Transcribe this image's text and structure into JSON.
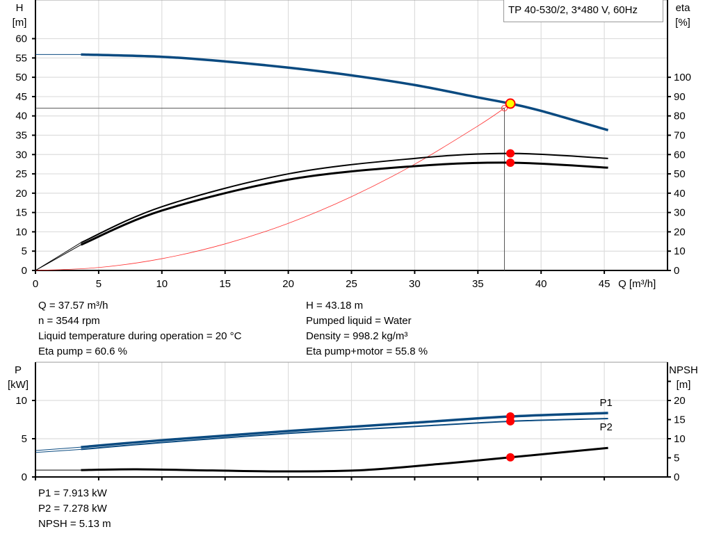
{
  "title_box": "TP 40-530/2, 3*480 V, 60Hz",
  "colors": {
    "head": "#0a4a80",
    "eta": "#000000",
    "system": "#ff3030",
    "marker": "#ff0000",
    "duty_fill": "#ffff00",
    "grid": "#dddddd",
    "power": "#0a4a80",
    "npsh": "#000000"
  },
  "info_left": [
    "Q = 37.57 m³/h",
    "n = 3544 rpm",
    "Liquid temperature during operation = 20 °C",
    "Eta pump = 60.6 %"
  ],
  "info_right": [
    "H = 43.18 m",
    "Pumped liquid = Water",
    "Density = 998.2 kg/m³",
    "Eta pump+motor = 55.8 %"
  ],
  "info_bottom": [
    "P1 = 7.913 kW",
    "P2 = 7.278 kW",
    "NPSH = 5.13 m"
  ],
  "chart_data": [
    {
      "type": "line",
      "xlabel": "Q [m³/h]",
      "ylabel": [
        "H",
        "[m]"
      ],
      "y2label": [
        "eta",
        "[%]"
      ],
      "xlim": [
        0,
        50
      ],
      "ylim": [
        0,
        70
      ],
      "y2lim": [
        0,
        140
      ],
      "xticks": [
        0,
        5,
        10,
        15,
        20,
        25,
        30,
        35,
        40,
        45
      ],
      "yticks": [
        0,
        5,
        10,
        15,
        20,
        25,
        30,
        35,
        40,
        45,
        50,
        55,
        60
      ],
      "y2ticks": [
        0,
        10,
        20,
        30,
        40,
        50,
        60,
        70,
        80,
        90,
        100
      ],
      "grid": true,
      "series": [
        {
          "key": "H",
          "axis": "left",
          "x": [
            3.6,
            10,
            15,
            20,
            25,
            30,
            35,
            37.57,
            40,
            45.3
          ],
          "y": [
            55.9,
            55.3,
            54.1,
            52.5,
            50.5,
            48.0,
            44.8,
            43.18,
            41.3,
            36.3
          ],
          "extension": {
            "x": [
              0,
              3.6
            ],
            "y": [
              55.9,
              55.9
            ]
          }
        },
        {
          "key": "eta_pump",
          "axis": "right",
          "x": [
            3.6,
            10,
            20,
            30,
            37.57,
            45.3
          ],
          "y": [
            14.4,
            33,
            50,
            58,
            60.6,
            58
          ],
          "extension": {
            "x": [
              0,
              3.6
            ],
            "y": [
              0,
              14.4
            ]
          }
        },
        {
          "key": "eta_pump_motor",
          "axis": "right",
          "x": [
            3.6,
            10,
            20,
            30,
            37.57,
            45.3
          ],
          "y": [
            13.3,
            31,
            47,
            54,
            55.8,
            53.2
          ],
          "extension": {
            "x": [
              0,
              3.6
            ],
            "y": [
              0,
              13.3
            ]
          }
        },
        {
          "key": "system",
          "axis": "left",
          "x": [
            0,
            5,
            10,
            15,
            20,
            25,
            30,
            35,
            37.1
          ],
          "y": [
            0,
            0.76,
            3.05,
            6.87,
            12.2,
            19.1,
            27.5,
            37.4,
            42.0
          ]
        }
      ],
      "duty_point": {
        "Q": 37.57,
        "H": 43.18,
        "eta_pump": 60.6,
        "eta_pump_motor": 55.8
      },
      "system_point": {
        "Q": 37.1,
        "H": 42.0
      }
    },
    {
      "type": "line",
      "ylabel": [
        "P",
        "[kW]"
      ],
      "y2label": [
        "NPSH",
        "[m]"
      ],
      "xlim": [
        0,
        50
      ],
      "ylim": [
        0,
        15
      ],
      "y2lim": [
        0,
        30
      ],
      "xticks": [
        0,
        5,
        10,
        15,
        20,
        25,
        30,
        35,
        40,
        45
      ],
      "yticks": [
        0,
        5,
        10
      ],
      "y2ticks": [
        0,
        5,
        10,
        15,
        20,
        25
      ],
      "y2ticklabels": [
        "0",
        "5",
        "10",
        "15",
        "20",
        ""
      ],
      "grid": true,
      "series": [
        {
          "key": "P1",
          "name": "P1",
          "axis": "left",
          "x": [
            3.6,
            10,
            20,
            30,
            37.57,
            45.3
          ],
          "y": [
            3.9,
            4.8,
            6.0,
            7.1,
            7.913,
            8.36
          ],
          "extension": {
            "x": [
              0,
              3.6
            ],
            "y": [
              3.45,
              3.9
            ]
          }
        },
        {
          "key": "P2",
          "name": "P2",
          "axis": "left",
          "x": [
            3.6,
            10,
            20,
            30,
            37.57,
            45.3
          ],
          "y": [
            3.6,
            4.5,
            5.7,
            6.6,
            7.278,
            7.64
          ],
          "extension": {
            "x": [
              0,
              3.6
            ],
            "y": [
              3.2,
              3.6
            ]
          }
        },
        {
          "key": "NPSH",
          "axis": "right",
          "x": [
            3.6,
            8,
            14,
            20,
            26,
            32,
            37.57,
            45.3
          ],
          "y": [
            1.8,
            2.0,
            1.7,
            1.45,
            1.8,
            3.4,
            5.13,
            7.6
          ],
          "extension": {
            "x": [
              0,
              3.6
            ],
            "y": [
              1.8,
              1.8
            ]
          }
        }
      ],
      "duty_point": {
        "Q": 37.57,
        "P1": 7.913,
        "P2": 7.278,
        "NPSH": 5.13
      }
    }
  ]
}
